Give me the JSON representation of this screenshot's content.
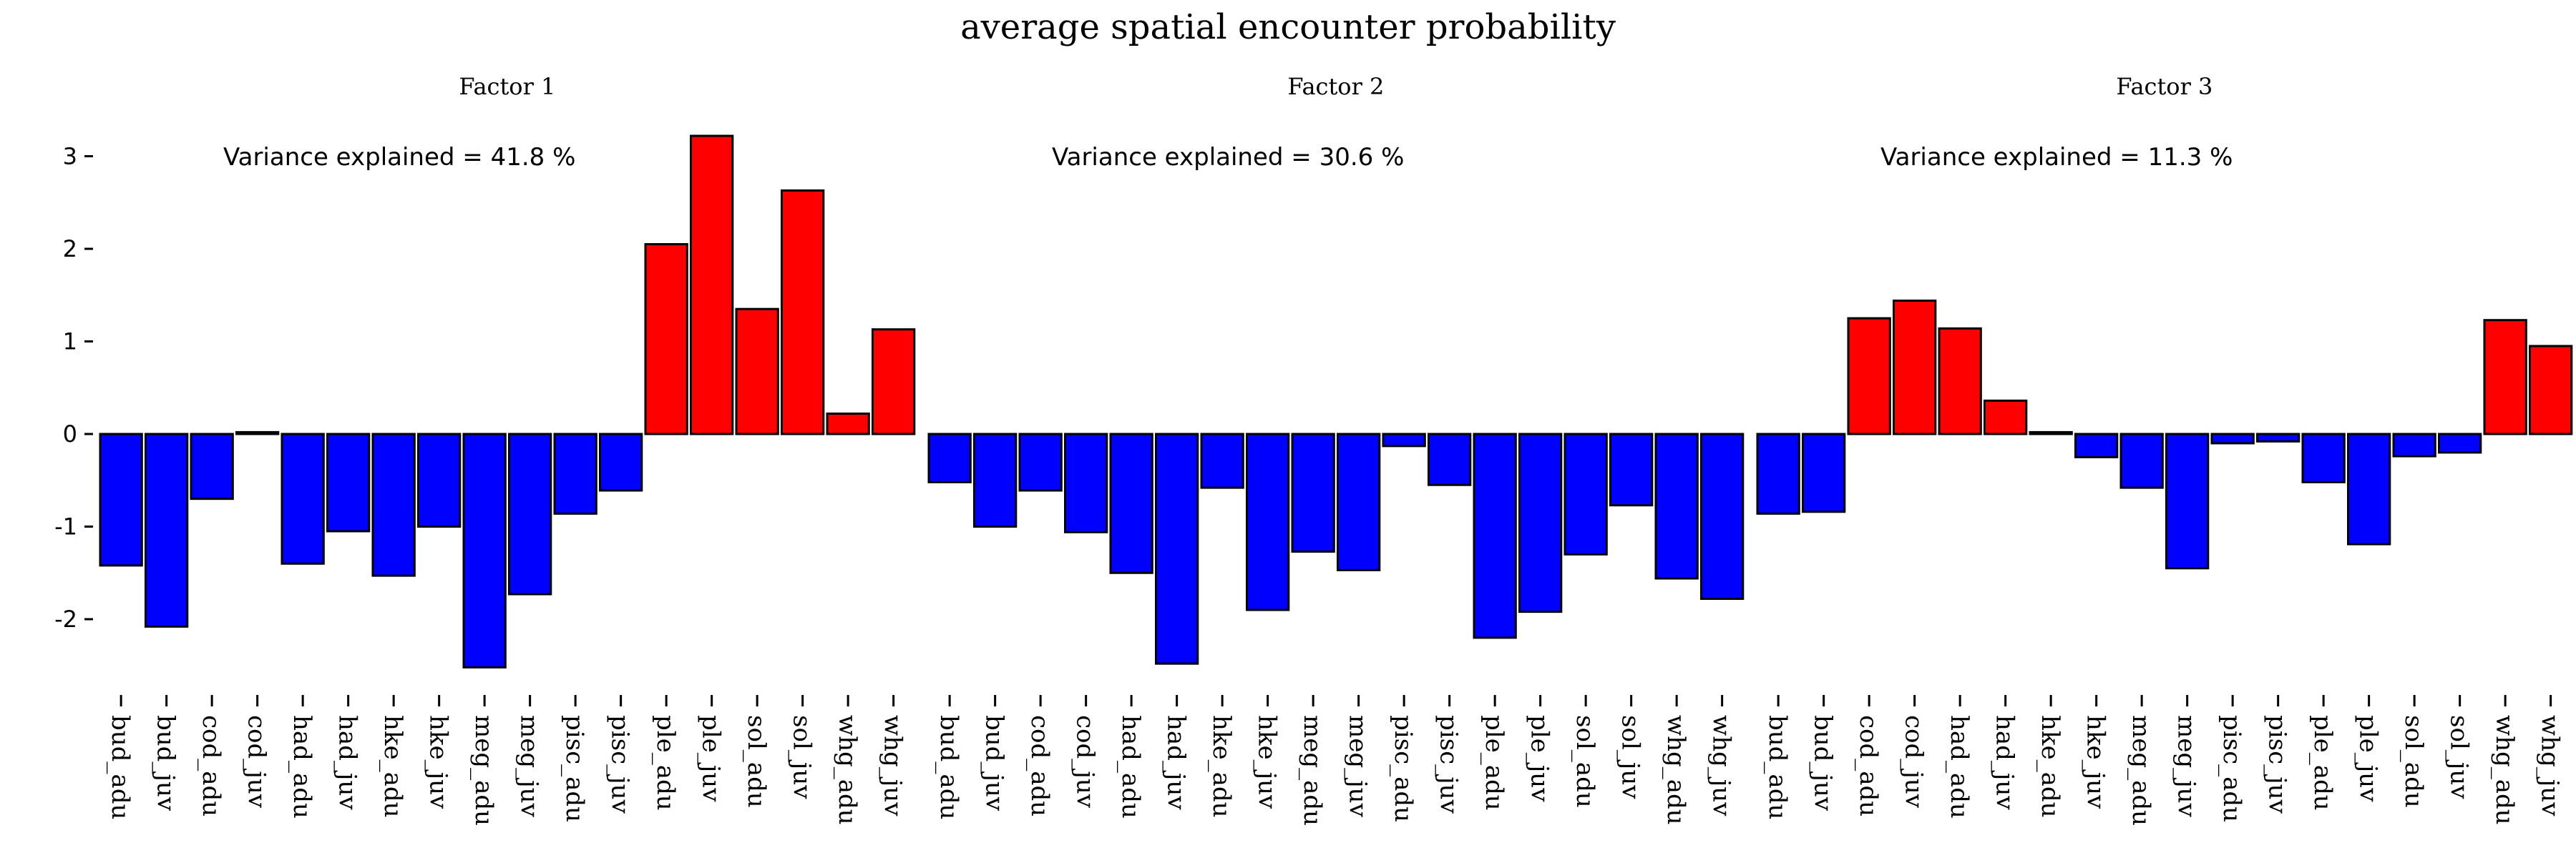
{
  "chart_data": {
    "type": "bar",
    "title": "average spatial encounter probability",
    "categories": [
      "bud_adu",
      "bud_juv",
      "cod_adu",
      "cod_juv",
      "had_adu",
      "had_juv",
      "hke_adu",
      "hke_juv",
      "meg_adu",
      "meg_juv",
      "pisc_adu",
      "pisc_juv",
      "ple_adu",
      "ple_juv",
      "sol_adu",
      "sol_juv",
      "whg_adu",
      "whg_juv"
    ],
    "ylim": [
      -2.7,
      3.4
    ],
    "yticks": [
      "-2",
      "-1",
      "0",
      "1",
      "2",
      "3"
    ],
    "ytick_values": [
      -2,
      -1,
      0,
      1,
      2,
      3
    ],
    "colors": {
      "positive": "#ff0000",
      "negative": "#0000ff"
    },
    "panels": [
      {
        "name": "Factor 1",
        "annotation": "Variance explained =  41.8 %",
        "values": [
          -1.42,
          -2.08,
          -0.7,
          0.02,
          -1.4,
          -1.05,
          -1.53,
          -1.0,
          -2.52,
          -1.73,
          -0.86,
          -0.61,
          2.05,
          3.22,
          1.35,
          2.63,
          0.22,
          1.13
        ]
      },
      {
        "name": "Factor 2",
        "annotation": "Variance explained =  30.6 %",
        "values": [
          -0.52,
          -1.0,
          -0.61,
          -1.06,
          -1.5,
          -2.48,
          -0.58,
          -1.9,
          -1.27,
          -1.47,
          -0.13,
          -0.55,
          -2.2,
          -1.92,
          -1.3,
          -0.77,
          -1.56,
          -1.78
        ]
      },
      {
        "name": "Factor 3",
        "annotation": "Variance explained =  11.3 %",
        "values": [
          -0.86,
          -0.84,
          1.25,
          1.44,
          1.14,
          0.36,
          0.02,
          -0.25,
          -0.58,
          -1.45,
          -0.1,
          -0.08,
          -0.52,
          -1.19,
          -0.24,
          -0.2,
          1.23,
          0.95
        ]
      }
    ]
  }
}
